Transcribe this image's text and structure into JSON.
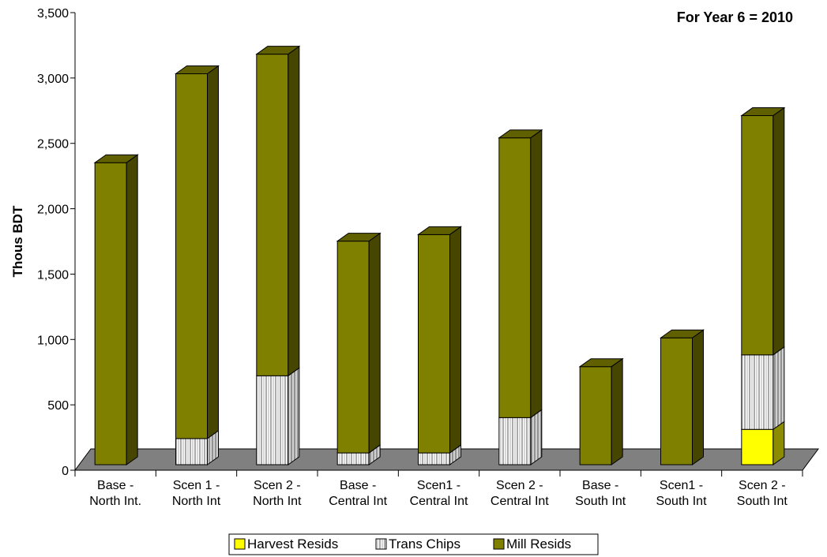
{
  "chart_data": {
    "type": "bar",
    "stacked": true,
    "three_d": true,
    "title": "",
    "annotation": "For Year 6 = 2010",
    "ylabel": "Thous BDT",
    "xlabel": "",
    "ylim": [
      0,
      3500
    ],
    "y_ticks": [
      "0",
      "500",
      "1,000",
      "1,500",
      "2,000",
      "2,500",
      "3,000",
      "3,500"
    ],
    "y_tick_values": [
      0,
      500,
      1000,
      1500,
      2000,
      2500,
      3000,
      3500
    ],
    "grid": false,
    "legend_position": "bottom",
    "categories": [
      [
        "Base -",
        "North Int."
      ],
      [
        "Scen 1 -",
        "North Int"
      ],
      [
        "Scen 2 -",
        "North Int"
      ],
      [
        "Base -",
        "Central Int"
      ],
      [
        "Scen1 -",
        "Central Int"
      ],
      [
        "Scen 2 -",
        "Central Int"
      ],
      [
        "Base -",
        "South Int"
      ],
      [
        "Scen1 -",
        "South Int"
      ],
      [
        "Scen 2 -",
        "South  Int"
      ]
    ],
    "series": [
      {
        "name": "Harvest Resids",
        "color": "#ffff00",
        "pattern": "solid",
        "values": [
          0,
          0,
          0,
          0,
          0,
          0,
          0,
          0,
          270
        ]
      },
      {
        "name": "Trans Chips",
        "color": "#ffffff",
        "pattern": "vertical-stripes",
        "values": [
          0,
          200,
          680,
          90,
          90,
          360,
          0,
          0,
          570
        ]
      },
      {
        "name": "Mill Resids",
        "color": "#808000",
        "pattern": "solid",
        "values": [
          2310,
          2790,
          2460,
          1620,
          1670,
          2140,
          750,
          970,
          1830
        ]
      }
    ]
  }
}
